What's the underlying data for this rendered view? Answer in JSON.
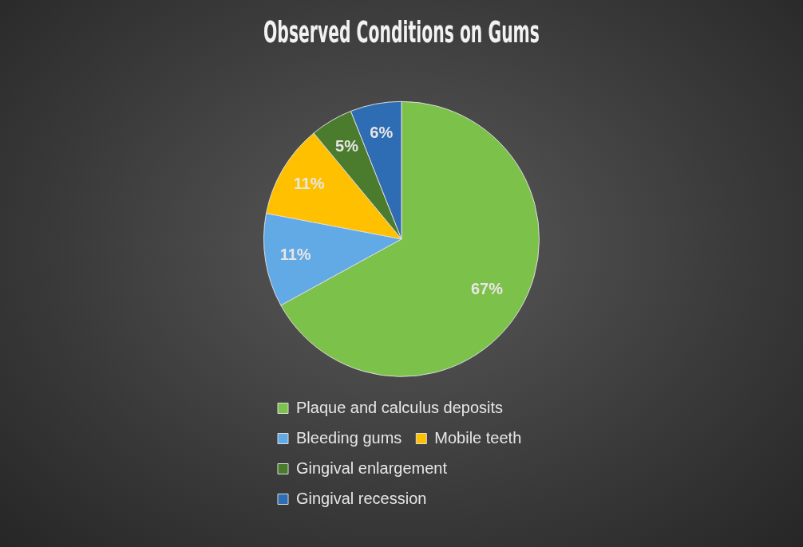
{
  "chart_data": {
    "type": "pie",
    "title": "Observed Conditions on Gums",
    "categories": [
      "Plaque and calculus deposits",
      "Bleeding gums",
      "Mobile teeth",
      "Gingival enlargement",
      "Gingival recession"
    ],
    "values": [
      67,
      11,
      11,
      5,
      6
    ],
    "colors": [
      "#7cc14a",
      "#62aae6",
      "#ffc000",
      "#4b7b2d",
      "#2e6cb3"
    ],
    "value_labels": [
      "67%",
      "11%",
      "11%",
      "5%",
      "6%"
    ],
    "legend": "bottom"
  }
}
